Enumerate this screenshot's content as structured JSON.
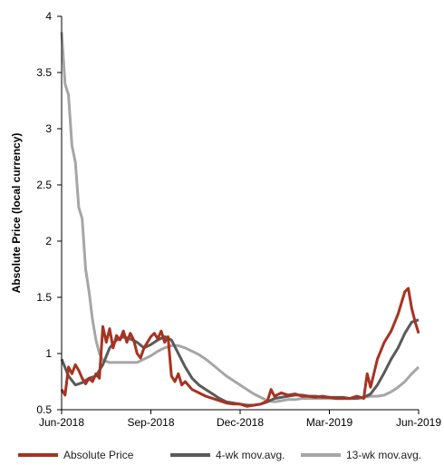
{
  "chart_data": {
    "type": "line",
    "title": "",
    "ylabel": "Absolute Price (local currency)",
    "xlabel": "",
    "ylim": [
      0.5,
      4
    ],
    "yticks": [
      "0.5",
      "1",
      "1.5",
      "2",
      "2.5",
      "3",
      "3.5",
      "4"
    ],
    "xticks": [
      {
        "label": "Jun-2018",
        "x": 0
      },
      {
        "label": "Sep-2018",
        "x": 13
      },
      {
        "label": "Dec-2018",
        "x": 26
      },
      {
        "label": "Mar-2019",
        "x": 39
      },
      {
        "label": "Jun-2019",
        "x": 52
      }
    ],
    "xrange": [
      0,
      52
    ],
    "x_unit": "weeks",
    "series": [
      {
        "name": "Absolute Price",
        "color": "#a83220",
        "x": [
          0,
          0.5,
          1,
          1.5,
          2,
          2.5,
          3,
          3.5,
          4,
          4.5,
          5,
          5.5,
          6,
          6.5,
          7,
          7.5,
          8,
          8.5,
          9,
          9.5,
          10,
          10.5,
          11,
          11.5,
          12,
          12.5,
          13,
          13.5,
          14,
          14.5,
          15,
          15.5,
          16,
          16.5,
          17,
          17.5,
          18,
          19,
          20,
          21,
          22,
          23,
          24,
          25,
          26,
          27,
          28,
          29,
          30,
          30.5,
          31,
          32,
          33,
          34,
          35,
          36,
          37,
          38,
          39,
          40,
          41,
          42,
          43,
          44,
          44.5,
          45,
          46,
          47,
          48,
          49,
          50,
          50.5,
          51,
          51.5,
          52
        ],
        "values": [
          0.68,
          0.63,
          0.88,
          0.82,
          0.9,
          0.85,
          0.78,
          0.73,
          0.78,
          0.75,
          0.82,
          0.78,
          1.24,
          1.1,
          1.22,
          1.05,
          1.16,
          1.12,
          1.2,
          1.1,
          1.18,
          1.12,
          1.0,
          0.96,
          1.05,
          1.1,
          1.15,
          1.18,
          1.13,
          1.2,
          1.1,
          1.15,
          0.8,
          0.75,
          0.82,
          0.72,
          0.75,
          0.68,
          0.65,
          0.62,
          0.6,
          0.58,
          0.56,
          0.55,
          0.55,
          0.53,
          0.54,
          0.55,
          0.58,
          0.68,
          0.62,
          0.65,
          0.63,
          0.64,
          0.62,
          0.62,
          0.61,
          0.62,
          0.61,
          0.6,
          0.6,
          0.6,
          0.62,
          0.6,
          0.82,
          0.7,
          0.95,
          1.1,
          1.2,
          1.35,
          1.55,
          1.58,
          1.4,
          1.28,
          1.18
        ]
      },
      {
        "name": "4-wk mov.avg.",
        "color": "#5a5a5a",
        "x": [
          0,
          1,
          2,
          3,
          4,
          5,
          6,
          7,
          8,
          9,
          10,
          11,
          12,
          13,
          14,
          15,
          16,
          17,
          18,
          19,
          20,
          21,
          22,
          23,
          24,
          25,
          26,
          27,
          28,
          29,
          30,
          31,
          32,
          33,
          34,
          35,
          36,
          37,
          38,
          39,
          40,
          41,
          42,
          43,
          44,
          45,
          46,
          47,
          48,
          49,
          50,
          51,
          52
        ],
        "values": [
          0.95,
          0.8,
          0.72,
          0.74,
          0.78,
          0.8,
          0.9,
          1.05,
          1.12,
          1.15,
          1.13,
          1.1,
          1.05,
          1.08,
          1.12,
          1.15,
          1.12,
          1.0,
          0.88,
          0.78,
          0.72,
          0.68,
          0.64,
          0.6,
          0.57,
          0.56,
          0.55,
          0.54,
          0.54,
          0.55,
          0.57,
          0.6,
          0.61,
          0.62,
          0.63,
          0.63,
          0.62,
          0.62,
          0.61,
          0.61,
          0.61,
          0.61,
          0.6,
          0.6,
          0.61,
          0.64,
          0.72,
          0.83,
          0.95,
          1.05,
          1.18,
          1.28,
          1.3
        ]
      },
      {
        "name": "13-wk mov.avg.",
        "color": "#a6a6a6",
        "x": [
          0,
          0.5,
          1,
          1.5,
          2,
          2.5,
          3,
          3.5,
          4,
          4.5,
          5,
          5.5,
          6,
          6.5,
          7,
          8,
          9,
          10,
          11,
          12,
          13,
          14,
          15,
          16,
          17,
          18,
          19,
          20,
          21,
          22,
          23,
          24,
          25,
          26,
          27,
          28,
          29,
          30,
          31,
          32,
          33,
          34,
          35,
          36,
          37,
          38,
          39,
          40,
          41,
          42,
          43,
          44,
          45,
          46,
          47,
          48,
          49,
          50,
          51,
          52
        ],
        "values": [
          3.86,
          3.4,
          3.3,
          2.85,
          2.7,
          2.3,
          2.2,
          1.75,
          1.55,
          1.3,
          1.12,
          1.0,
          0.94,
          0.93,
          0.92,
          0.92,
          0.92,
          0.92,
          0.92,
          0.95,
          0.98,
          1.02,
          1.05,
          1.07,
          1.07,
          1.05,
          1.02,
          0.99,
          0.95,
          0.9,
          0.85,
          0.8,
          0.76,
          0.72,
          0.68,
          0.64,
          0.61,
          0.58,
          0.57,
          0.58,
          0.59,
          0.59,
          0.6,
          0.6,
          0.6,
          0.6,
          0.6,
          0.6,
          0.6,
          0.6,
          0.61,
          0.61,
          0.62,
          0.62,
          0.63,
          0.66,
          0.7,
          0.75,
          0.82,
          0.88
        ]
      }
    ],
    "legend_position": "bottom",
    "grid": false
  }
}
